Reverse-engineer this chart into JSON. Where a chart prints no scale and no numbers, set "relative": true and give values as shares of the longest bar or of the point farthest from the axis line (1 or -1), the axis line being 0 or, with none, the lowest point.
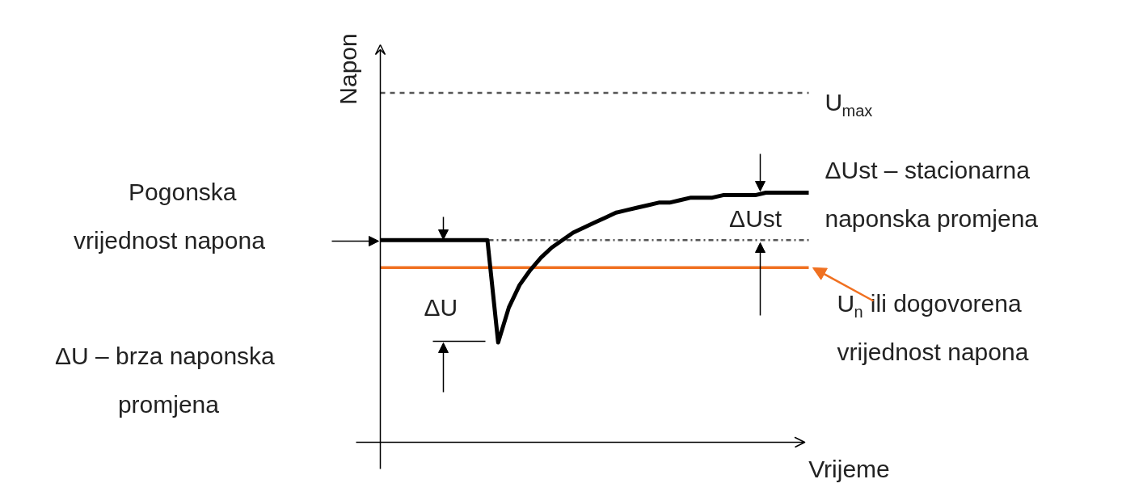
{
  "chart_data": {
    "type": "line",
    "relative": true,
    "xlabel": "Vrijeme",
    "ylabel": "Napon",
    "categories": [
      null,
      null,
      null,
      null,
      null,
      null,
      null,
      null,
      null,
      null,
      null,
      null,
      null,
      null,
      null,
      null,
      null,
      null,
      null,
      null,
      null,
      null,
      null,
      null,
      null,
      null,
      null,
      null,
      null,
      null,
      null,
      null,
      null,
      null,
      null,
      null,
      null,
      null,
      null,
      null,
      null
    ],
    "series": [
      {
        "color": "#000000",
        "values": [
          0.81,
          0.81,
          0.81,
          0.81,
          0.81,
          0.81,
          0.81,
          0.81,
          0.81,
          0.81,
          0.81,
          0.4,
          0.54,
          0.63,
          0.69,
          0.74,
          0.78,
          0.81,
          0.84,
          0.86,
          0.88,
          0.9,
          0.92,
          0.93,
          0.94,
          0.95,
          0.96,
          0.96,
          0.97,
          0.98,
          0.98,
          0.98,
          0.99,
          0.99,
          0.99,
          0.99,
          1.0,
          1.0,
          1.0,
          1.0,
          1.0
        ]
      },
      {
        "color": "#f07020",
        "values": [
          0.7,
          0.7,
          0.7,
          0.7,
          0.7,
          0.7,
          0.7,
          0.7,
          0.7,
          0.7,
          0.7,
          0.7,
          0.7,
          0.7,
          0.7,
          0.7,
          0.7,
          0.7,
          0.7,
          0.7,
          0.7,
          0.7,
          0.7,
          0.7,
          0.7,
          0.7,
          0.7,
          0.7,
          0.7,
          0.7,
          0.7,
          0.7,
          0.7,
          0.7,
          0.7,
          0.7,
          0.7,
          0.7,
          0.7,
          0.7,
          0.7
        ]
      }
    ],
    "ref_lines": [
      {
        "axis": "y",
        "value": 1.4,
        "label": "U$_{max}$",
        "color": "#555555",
        "line_style": "dashed"
      },
      {
        "axis": "y",
        "value": 0.81,
        "color": "#555555",
        "line_style": "dashdot"
      }
    ],
    "annotations": [
      "Pogonska vrijednost napona",
      "ΔU – brza naponska promjena",
      "ΔU",
      "ΔUst",
      "ΔUst – stacionarna naponska promjena",
      "U$_{n}$ ili dogovorena vrijednost napona"
    ]
  }
}
